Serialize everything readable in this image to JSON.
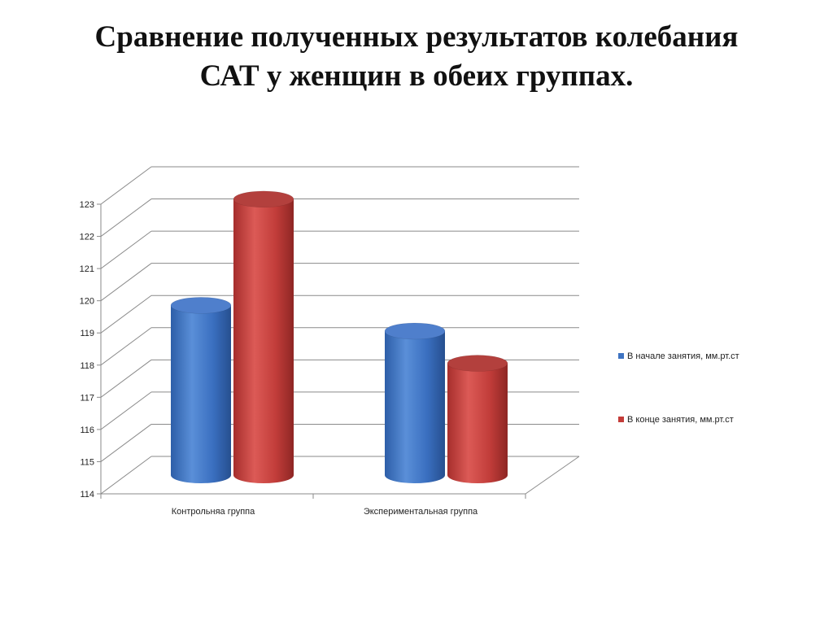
{
  "slide": {
    "title_line1": "Сравнение полученных результатов колебания",
    "title_line2": "САТ у женщин в обеих группах."
  },
  "chart_data": {
    "type": "bar",
    "style": "3d-cylinder",
    "categories": [
      "Контрольняа группа",
      "Экспериментальная группа"
    ],
    "series": [
      {
        "name": "В начале занятия, мм.рт.ст",
        "values": [
          119.3,
          118.5
        ],
        "color": "#3e73c2"
      },
      {
        "name": "В конце занятия, мм.рт.ст",
        "values": [
          122.6,
          117.5
        ],
        "color": "#c43c39"
      }
    ],
    "y_ticks": [
      "114",
      "115",
      "116",
      "117",
      "118",
      "119",
      "120",
      "121",
      "122",
      "123"
    ],
    "ylim": [
      114,
      123
    ],
    "grid": true,
    "legend_position": "right"
  }
}
